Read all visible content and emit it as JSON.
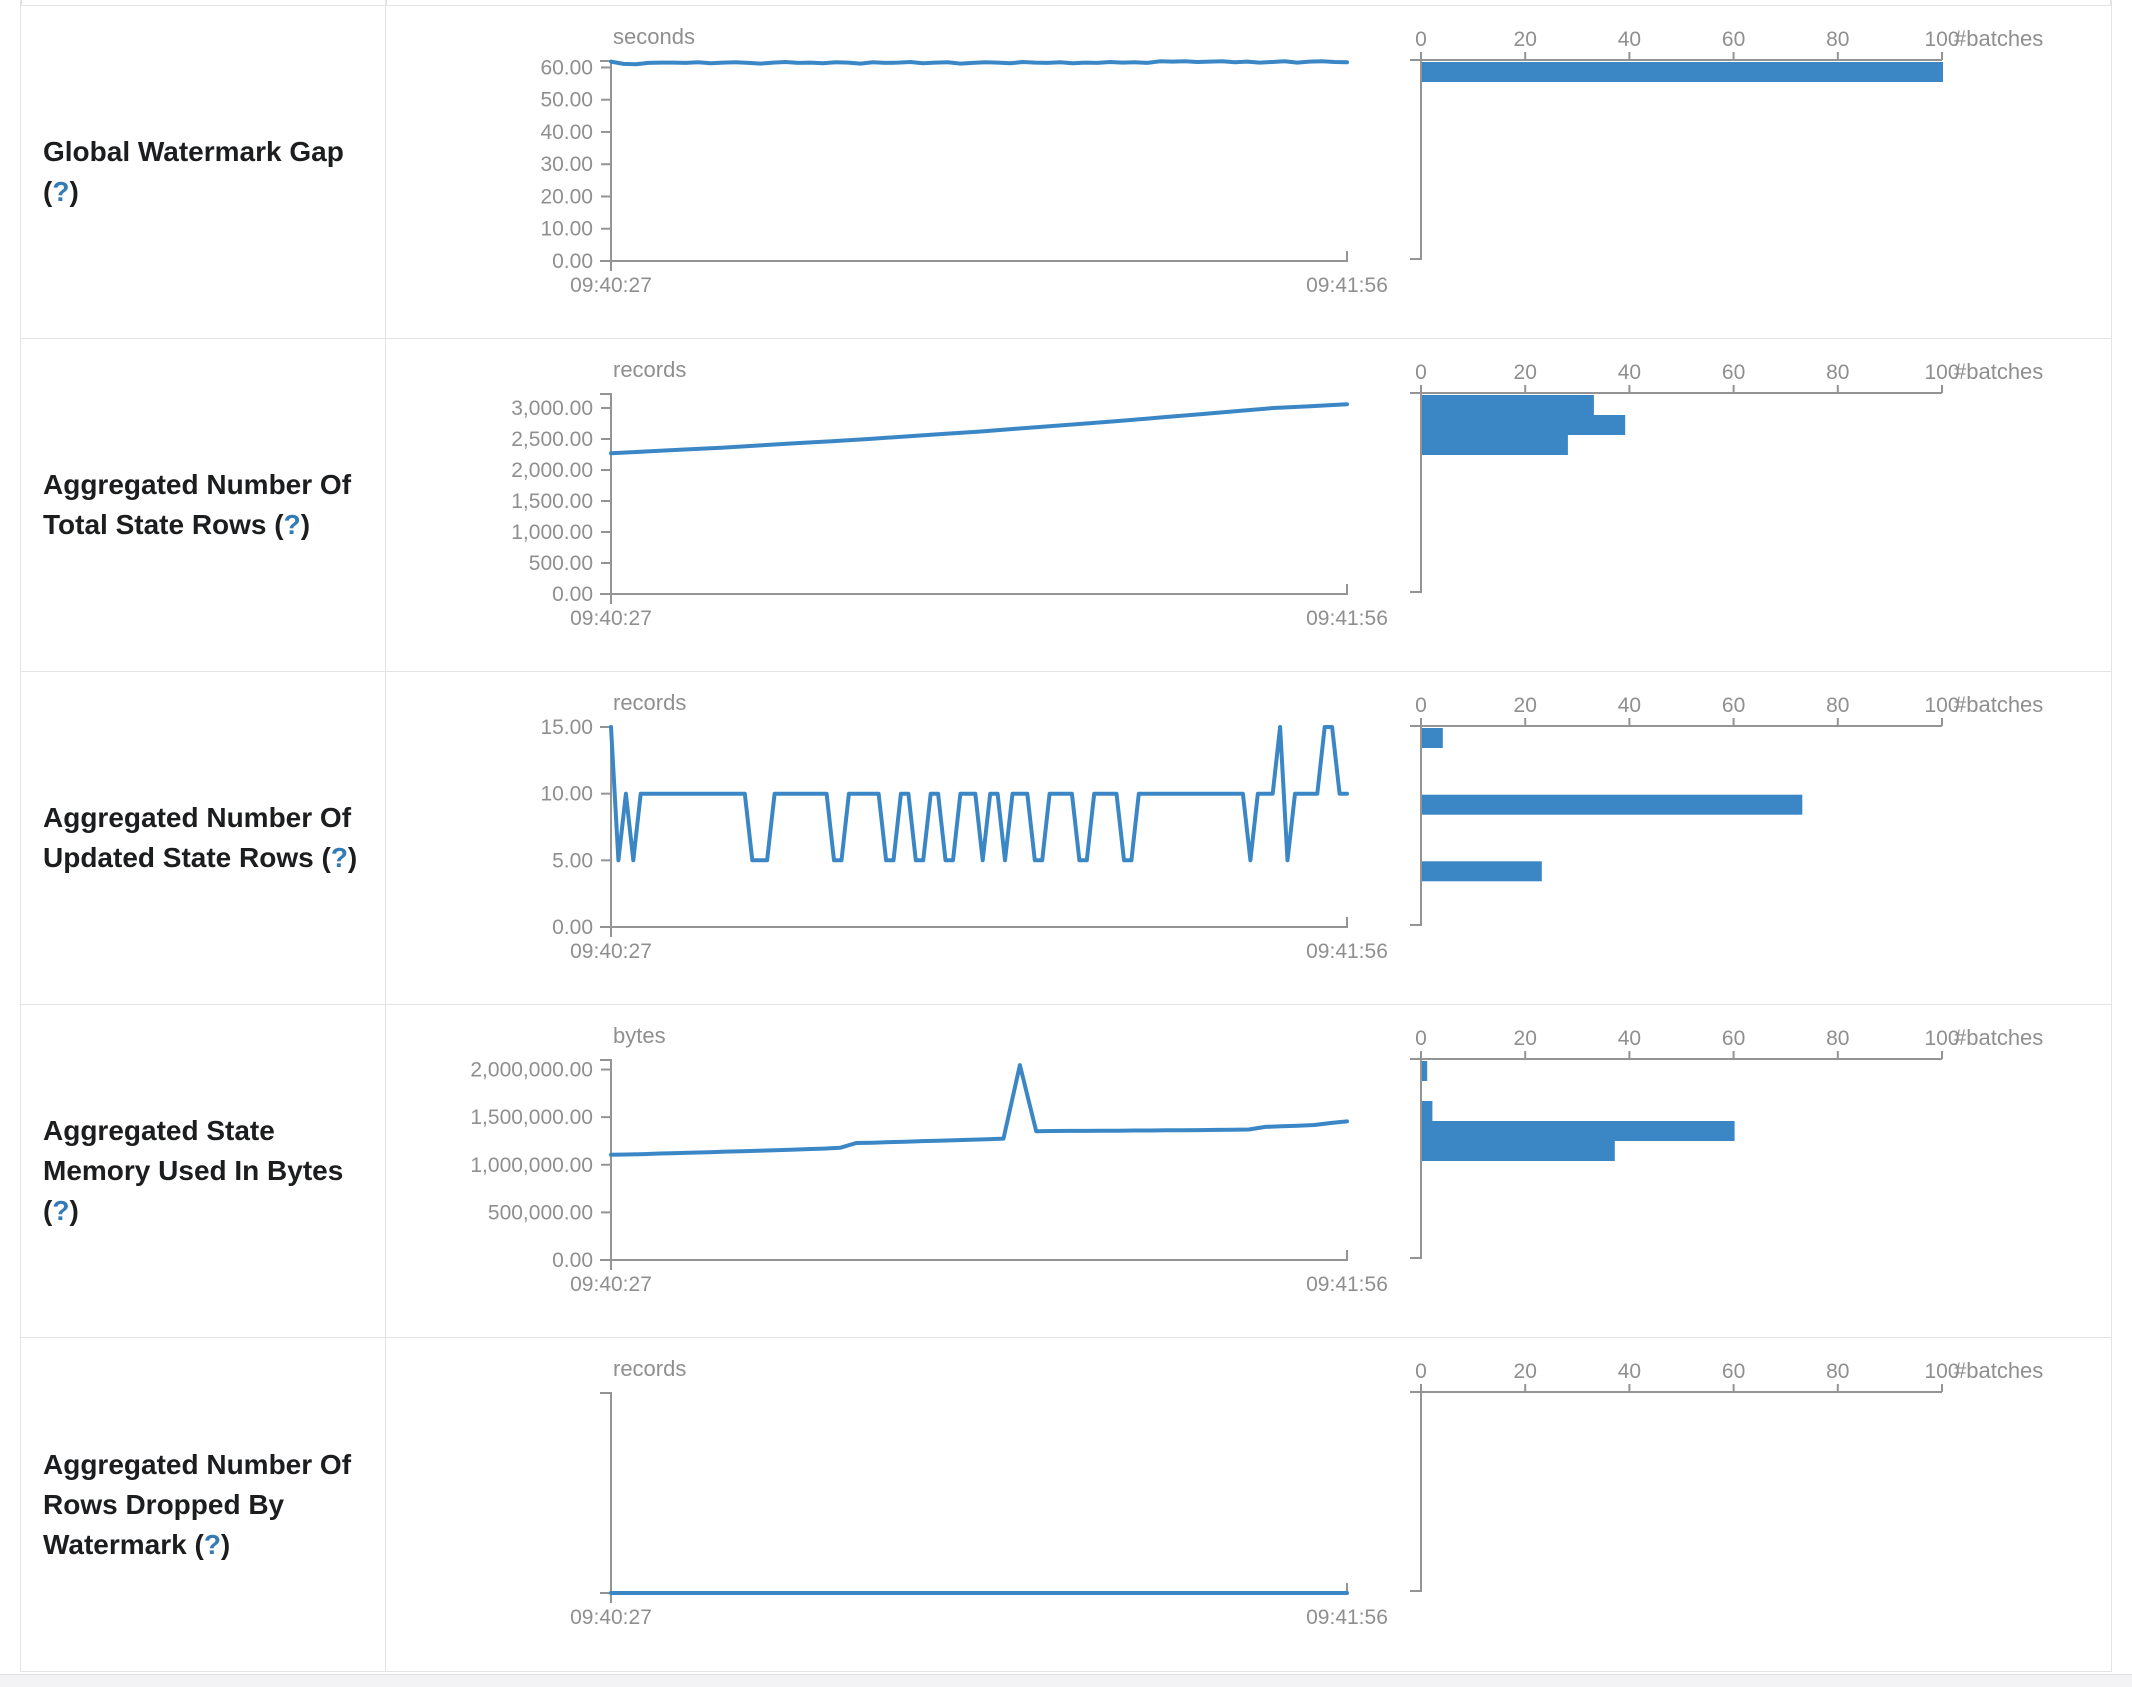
{
  "theme": {
    "accent_blue": "#3b87c6",
    "axis_gray": "#949494",
    "text_gray": "#8f8f8f",
    "label_dark": "#1b1d1f",
    "help_blue": "#337ab7",
    "border_gray": "#e4e4e7",
    "strip_gray": "#f3f3f6"
  },
  "help": {
    "open": "(",
    "mark": "?",
    "close": ")"
  },
  "rows": [
    {
      "label": "Global Watermark Gap"
    },
    {
      "label": "Aggregated Number Of Total State Rows"
    },
    {
      "label": "Aggregated Number Of Updated State Rows"
    },
    {
      "label": "Aggregated State Memory Used In Bytes"
    },
    {
      "label": "Aggregated Number Of Rows Dropped By Watermark"
    }
  ],
  "chart_data": [
    {
      "type": "line",
      "metric": "Global Watermark Gap",
      "unit": "seconds",
      "x_range": [
        "09:40:27",
        "09:41:56"
      ],
      "y_max": 62,
      "y_tick_values": [
        0,
        10,
        20,
        30,
        40,
        50,
        60
      ],
      "y_tick_labels": [
        "0.00",
        "10.00",
        "20.00",
        "30.00",
        "40.00",
        "50.00",
        "60.00"
      ],
      "values": [
        61.8,
        61.1,
        61.0,
        61.4,
        61.5,
        61.5,
        61.4,
        61.6,
        61.3,
        61.5,
        61.6,
        61.4,
        61.2,
        61.5,
        61.7,
        61.4,
        61.5,
        61.3,
        61.6,
        61.5,
        61.2,
        61.6,
        61.4,
        61.5,
        61.7,
        61.3,
        61.5,
        61.6,
        61.2,
        61.4,
        61.6,
        61.5,
        61.3,
        61.7,
        61.5,
        61.4,
        61.6,
        61.3,
        61.5,
        61.4,
        61.7,
        61.5,
        61.6,
        61.4,
        61.9,
        61.8,
        61.9,
        61.7,
        61.8,
        61.9,
        61.6,
        61.8,
        61.5,
        61.7,
        61.9,
        61.5,
        61.8,
        61.9,
        61.7,
        61.6
      ],
      "hist_label": "#batches",
      "hist_ticks": [
        0,
        20,
        40,
        60,
        80,
        100
      ],
      "hist_bars": [
        {
          "level": 62,
          "count": 100
        }
      ]
    },
    {
      "type": "line",
      "metric": "Aggregated Number Of Total State Rows",
      "unit": "records",
      "x_range": [
        "09:40:27",
        "09:41:56"
      ],
      "y_max": 3226,
      "y_tick_values": [
        0,
        500,
        1000,
        1500,
        2000,
        2500,
        3000
      ],
      "y_tick_labels": [
        "0.00",
        "500.00",
        "1,000.00",
        "1,500.00",
        "2,000.00",
        "2,500.00",
        "3,000.00"
      ],
      "values": [
        2270,
        2300,
        2330,
        2360,
        2395,
        2430,
        2465,
        2500,
        2540,
        2580,
        2620,
        2665,
        2710,
        2755,
        2800,
        2850,
        2900,
        2950,
        3000,
        3030,
        3060
      ],
      "hist_label": "#batches",
      "hist_ticks": [
        0,
        20,
        40,
        60,
        80,
        100
      ],
      "hist_bars": [
        {
          "level": 3226,
          "count": 33
        },
        {
          "level": 2903,
          "count": 39
        },
        {
          "level": 2580,
          "count": 28
        }
      ]
    },
    {
      "type": "line",
      "metric": "Aggregated Number Of Updated State Rows",
      "unit": "records",
      "x_range": [
        "09:40:27",
        "09:41:56"
      ],
      "y_max": 15,
      "y_tick_values": [
        0,
        5,
        10,
        15
      ],
      "y_tick_labels": [
        "0.00",
        "5.00",
        "10.00",
        "15.00"
      ],
      "values": [
        15,
        5,
        10,
        5,
        10,
        10,
        10,
        10,
        10,
        10,
        10,
        10,
        10,
        10,
        10,
        10,
        10,
        10,
        10,
        5,
        5,
        5,
        10,
        10,
        10,
        10,
        10,
        10,
        10,
        10,
        5,
        5,
        10,
        10,
        10,
        10,
        10,
        5,
        5,
        10,
        10,
        5,
        5,
        10,
        10,
        5,
        5,
        10,
        10,
        10,
        5,
        10,
        10,
        5,
        10,
        10,
        10,
        5,
        5,
        10,
        10,
        10,
        10,
        5,
        5,
        10,
        10,
        10,
        10,
        5,
        5,
        10,
        10,
        10,
        10,
        10,
        10,
        10,
        10,
        10,
        10,
        10,
        10,
        10,
        10,
        10,
        5,
        10,
        10,
        10,
        15,
        5,
        10,
        10,
        10,
        10,
        15,
        15,
        10,
        10
      ],
      "hist_label": "#batches",
      "hist_ticks": [
        0,
        20,
        40,
        60,
        80,
        100
      ],
      "hist_bars": [
        {
          "level": 15,
          "count": 4
        },
        {
          "level": 10,
          "count": 73
        },
        {
          "level": 5,
          "count": 23
        }
      ]
    },
    {
      "type": "line",
      "metric": "Aggregated State Memory Used In Bytes",
      "unit": "bytes",
      "x_range": [
        "09:40:27",
        "09:41:56"
      ],
      "y_max": 2100000,
      "y_tick_values": [
        0,
        500000,
        1000000,
        1500000,
        2000000
      ],
      "y_tick_labels": [
        "0.00",
        "500,000.00",
        "1,000,000.00",
        "1,500,000.00",
        "2,000,000.00"
      ],
      "values": [
        1105000,
        1108000,
        1112000,
        1118000,
        1122000,
        1128000,
        1132000,
        1138000,
        1142000,
        1148000,
        1152000,
        1158000,
        1164000,
        1170000,
        1178000,
        1228000,
        1232000,
        1238000,
        1242000,
        1248000,
        1252000,
        1258000,
        1262000,
        1268000,
        1275000,
        2046000,
        1352000,
        1354000,
        1356000,
        1356000,
        1358000,
        1358000,
        1360000,
        1360000,
        1362000,
        1362000,
        1364000,
        1366000,
        1368000,
        1370000,
        1398000,
        1404000,
        1410000,
        1418000,
        1438000,
        1455000
      ],
      "hist_label": "#batches",
      "hist_ticks": [
        0,
        20,
        40,
        60,
        80,
        100
      ],
      "hist_bars": [
        {
          "level": 2100000,
          "count": 1
        },
        {
          "level": 1680000,
          "count": 2
        },
        {
          "level": 1470000,
          "count": 60
        },
        {
          "level": 1260000,
          "count": 37
        }
      ]
    },
    {
      "type": "line",
      "metric": "Aggregated Number Of Rows Dropped By Watermark",
      "unit": "records",
      "x_range": [
        "09:40:27",
        "09:41:56"
      ],
      "y_max": 1,
      "y_tick_values": [],
      "y_tick_labels": [],
      "values": [
        0,
        0,
        0,
        0,
        0,
        0,
        0,
        0,
        0,
        0
      ],
      "hist_label": "#batches",
      "hist_ticks": [
        0,
        20,
        40,
        60,
        80,
        100
      ],
      "hist_bars": []
    }
  ]
}
